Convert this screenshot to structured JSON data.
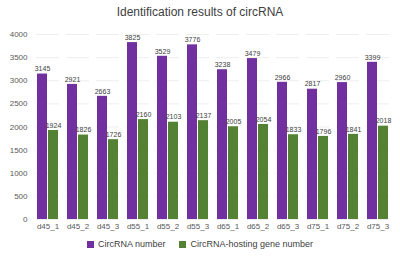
{
  "chart_data": {
    "type": "bar",
    "title": "Identification results of circRNA",
    "categories": [
      "d45_1",
      "d45_2",
      "d45_3",
      "d55_1",
      "d55_2",
      "d55_3",
      "d65_1",
      "d65_2",
      "d65_3",
      "d75_1",
      "d75_2",
      "d75_3"
    ],
    "series": [
      {
        "name": "CircRNA number",
        "color": "#7030a0",
        "values": [
          3145,
          2921,
          2663,
          3825,
          3529,
          3776,
          3238,
          3479,
          2966,
          2817,
          2960,
          3399
        ]
      },
      {
        "name": "CircRNA-hosting gene number",
        "color": "#548235",
        "values": [
          1924,
          1826,
          1726,
          2160,
          2103,
          2137,
          2005,
          2054,
          1833,
          1796,
          1841,
          2018
        ]
      }
    ],
    "ylim": [
      0,
      4000
    ],
    "yticks": [
      0,
      500,
      1000,
      1500,
      2000,
      2500,
      3000,
      3500,
      4000
    ],
    "grid": true,
    "data_labels": true,
    "legend": "bottom"
  }
}
